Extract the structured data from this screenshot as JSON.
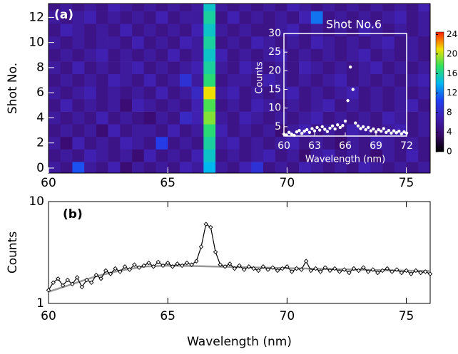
{
  "chart_data": [
    {
      "type": "heatmap",
      "panel_label": "(a)",
      "ylabel": "Shot No.",
      "xbins": [
        60,
        60.5,
        61,
        61.5,
        62,
        62.5,
        63,
        63.5,
        64,
        64.5,
        65,
        65.5,
        66,
        66.5,
        67,
        67.5,
        68,
        68.5,
        69,
        69.5,
        70,
        70.5,
        71,
        71.5,
        72,
        72.5,
        73,
        73.5,
        74,
        74.5,
        75,
        75.5,
        76
      ],
      "y": [
        0,
        1,
        2,
        3,
        4,
        5,
        6,
        7,
        8,
        9,
        10,
        11,
        12,
        13
      ],
      "z": [
        [
          6,
          5,
          11,
          6,
          5,
          7,
          4,
          6,
          5,
          6,
          5,
          7,
          6,
          14,
          6,
          5,
          7,
          9,
          5,
          6,
          5,
          7,
          6,
          5,
          6,
          5,
          7,
          6,
          5,
          6,
          5,
          6
        ],
        [
          5,
          6,
          5,
          7,
          6,
          5,
          6,
          4,
          7,
          5,
          6,
          5,
          7,
          15,
          5,
          6,
          5,
          6,
          7,
          5,
          6,
          4,
          6,
          7,
          5,
          6,
          5,
          4,
          6,
          5,
          7,
          5
        ],
        [
          6,
          4,
          7,
          5,
          6,
          5,
          7,
          6,
          5,
          10,
          5,
          6,
          5,
          16,
          6,
          7,
          5,
          6,
          5,
          6,
          7,
          5,
          6,
          5,
          4,
          6,
          5,
          7,
          6,
          5,
          6,
          5
        ],
        [
          5,
          6,
          5,
          6,
          4,
          7,
          5,
          6,
          6,
          5,
          7,
          5,
          6,
          17,
          7,
          5,
          6,
          5,
          6,
          4,
          6,
          7,
          5,
          6,
          5,
          7,
          6,
          5,
          6,
          7,
          5,
          6
        ],
        [
          6,
          5,
          6,
          5,
          7,
          5,
          6,
          5,
          4,
          6,
          5,
          8,
          7,
          19,
          6,
          5,
          7,
          6,
          5,
          6,
          5,
          6,
          7,
          5,
          6,
          5,
          6,
          5,
          7,
          6,
          5,
          6
        ],
        [
          5,
          7,
          5,
          6,
          5,
          6,
          4,
          7,
          6,
          5,
          6,
          5,
          7,
          18,
          5,
          6,
          5,
          7,
          6,
          5,
          6,
          5,
          6,
          7,
          5,
          6,
          5,
          6,
          5,
          6,
          7,
          5
        ],
        [
          6,
          5,
          6,
          7,
          5,
          6,
          5,
          6,
          5,
          7,
          5,
          6,
          8,
          21,
          6,
          7,
          5,
          6,
          5,
          6,
          7,
          5,
          6,
          5,
          6,
          7,
          5,
          6,
          5,
          6,
          5,
          6
        ],
        [
          5,
          6,
          5,
          6,
          5,
          7,
          6,
          5,
          7,
          5,
          6,
          9,
          6,
          17,
          5,
          6,
          6,
          5,
          7,
          6,
          5,
          6,
          5,
          6,
          7,
          5,
          6,
          5,
          6,
          5,
          6,
          7
        ],
        [
          6,
          5,
          7,
          5,
          6,
          5,
          6,
          7,
          5,
          6,
          5,
          6,
          7,
          16,
          6,
          5,
          7,
          6,
          5,
          6,
          5,
          7,
          6,
          5,
          6,
          5,
          6,
          7,
          5,
          6,
          5,
          6
        ],
        [
          5,
          6,
          5,
          6,
          7,
          5,
          6,
          5,
          6,
          5,
          7,
          5,
          6,
          15,
          7,
          5,
          6,
          5,
          6,
          7,
          5,
          6,
          5,
          6,
          5,
          6,
          7,
          5,
          6,
          5,
          6,
          5
        ],
        [
          6,
          5,
          6,
          5,
          6,
          6,
          5,
          7,
          5,
          6,
          5,
          7,
          6,
          16,
          5,
          6,
          5,
          7,
          6,
          5,
          6,
          5,
          7,
          6,
          5,
          6,
          5,
          6,
          7,
          5,
          6,
          5
        ],
        [
          5,
          7,
          6,
          5,
          6,
          5,
          7,
          5,
          6,
          5,
          6,
          5,
          7,
          15,
          6,
          5,
          6,
          5,
          5,
          6,
          7,
          5,
          6,
          5,
          6,
          5,
          7,
          6,
          5,
          6,
          5,
          6
        ],
        [
          6,
          5,
          6,
          7,
          5,
          6,
          5,
          6,
          5,
          7,
          5,
          6,
          6,
          16,
          5,
          7,
          5,
          6,
          5,
          6,
          5,
          7,
          12,
          5,
          6,
          5,
          6,
          5,
          6,
          7,
          5,
          6
        ],
        [
          5,
          6,
          5,
          6,
          5,
          7,
          6,
          5,
          6,
          5,
          6,
          5,
          6,
          15,
          6,
          5,
          6,
          5,
          6,
          5,
          7,
          6,
          5,
          6,
          5,
          6,
          5,
          6,
          5,
          6,
          5,
          7
        ]
      ],
      "xlim": [
        60,
        76
      ],
      "ylim": [
        -0.4,
        13.1
      ],
      "xticks": [
        60,
        65,
        70,
        75
      ],
      "yticks": [
        0,
        2,
        4,
        6,
        8,
        10,
        12
      ],
      "clim": [
        0,
        24.5
      ],
      "cticks": [
        0,
        4,
        8,
        12,
        16,
        20,
        24
      ],
      "colormap": [
        "#000000",
        "#3a0a6a",
        "#4020b0",
        "#2040f0",
        "#00b8f0",
        "#30e060",
        "#f0e000",
        "#ff2000"
      ]
    },
    {
      "type": "scatter",
      "title": "Shot No.6",
      "xlabel": "Wavelength (nm)",
      "ylabel": "Counts",
      "color": "#ffffff",
      "x": [
        60,
        60.25,
        60.5,
        60.75,
        61,
        61.25,
        61.5,
        61.75,
        62,
        62.25,
        62.5,
        62.75,
        63,
        63.25,
        63.5,
        63.75,
        64,
        64.25,
        64.5,
        64.75,
        65,
        65.25,
        65.5,
        65.75,
        66,
        66.25,
        66.5,
        66.75,
        67,
        67.25,
        67.5,
        67.75,
        68,
        68.25,
        68.5,
        68.75,
        69,
        69.25,
        69.5,
        69.75,
        70,
        70.25,
        70.5,
        70.75,
        71,
        71.25,
        71.5,
        71.75,
        72
      ],
      "values": [
        3,
        2.8,
        3.5,
        3,
        2.7,
        3.6,
        4,
        3.2,
        3.8,
        4.2,
        3.5,
        4.5,
        3.9,
        4.8,
        4.1,
        5,
        4.3,
        3.7,
        4.6,
        5.2,
        4.4,
        5.5,
        4.8,
        5.3,
        6.5,
        12,
        21,
        15,
        6,
        5.2,
        4.5,
        5,
        4.2,
        4.8,
        3.9,
        4.4,
        3.6,
        4.2,
        3.8,
        4.5,
        3.5,
        4,
        3.3,
        3.9,
        3.4,
        3.8,
        3.1,
        3.6,
        3.3
      ],
      "xlim": [
        60,
        72
      ],
      "ylim": [
        2.5,
        30
      ],
      "xticks": [
        60,
        63,
        66,
        69,
        72
      ],
      "yticks": [
        5,
        10,
        15,
        20,
        25,
        30
      ]
    },
    {
      "type": "line",
      "panel_label": "(b)",
      "xlabel": "Wavelength (nm)",
      "ylabel": "Counts",
      "log_y": true,
      "xlim": [
        60,
        76
      ],
      "ylim": [
        1,
        10
      ],
      "xticks": [
        60,
        65,
        70,
        75
      ],
      "yticks": [
        1,
        10
      ],
      "series": [
        {
          "color": "#000000",
          "marker": "diamond",
          "x": [
            60,
            60.2,
            60.4,
            60.6,
            60.8,
            61,
            61.2,
            61.4,
            61.6,
            61.8,
            62,
            62.2,
            62.4,
            62.6,
            62.8,
            63,
            63.2,
            63.4,
            63.6,
            63.8,
            64,
            64.2,
            64.4,
            64.6,
            64.8,
            65,
            65.2,
            65.4,
            65.6,
            65.8,
            66,
            66.2,
            66.4,
            66.6,
            66.8,
            67,
            67.2,
            67.4,
            67.6,
            67.8,
            68,
            68.2,
            68.4,
            68.6,
            68.8,
            69,
            69.2,
            69.4,
            69.6,
            69.8,
            70,
            70.2,
            70.4,
            70.6,
            70.8,
            71,
            71.2,
            71.4,
            71.6,
            71.8,
            72,
            72.2,
            72.4,
            72.6,
            72.8,
            73,
            73.2,
            73.4,
            73.6,
            73.8,
            74,
            74.2,
            74.4,
            74.6,
            74.8,
            75,
            75.2,
            75.4,
            75.6,
            75.8,
            76
          ],
          "values": [
            1.35,
            1.6,
            1.75,
            1.5,
            1.7,
            1.55,
            1.8,
            1.45,
            1.7,
            1.6,
            1.9,
            1.75,
            2.1,
            1.95,
            2.2,
            2.05,
            2.3,
            2.15,
            2.4,
            2.25,
            2.35,
            2.5,
            2.3,
            2.55,
            2.35,
            2.5,
            2.3,
            2.45,
            2.35,
            2.5,
            2.4,
            2.6,
            3.6,
            6.0,
            5.6,
            3.2,
            2.4,
            2.3,
            2.45,
            2.2,
            2.35,
            2.15,
            2.3,
            2.2,
            2.1,
            2.3,
            2.15,
            2.25,
            2.1,
            2.2,
            2.3,
            2.05,
            2.2,
            2.15,
            2.6,
            2.1,
            2.2,
            2.05,
            2.25,
            2.1,
            2.2,
            2.05,
            2.15,
            2.0,
            2.2,
            2.1,
            2.25,
            2.05,
            2.15,
            2.0,
            2.1,
            2.2,
            2.05,
            2.15,
            2.0,
            2.1,
            1.95,
            2.1,
            2.0,
            2.05,
            1.95
          ]
        },
        {
          "color": "#999999",
          "x": [
            60,
            61,
            62,
            63,
            64,
            65,
            66,
            67,
            68,
            70,
            72,
            74,
            76
          ],
          "values": [
            1.3,
            1.55,
            1.85,
            2.1,
            2.3,
            2.35,
            2.33,
            2.3,
            2.27,
            2.22,
            2.17,
            2.12,
            2.08
          ]
        }
      ]
    }
  ]
}
